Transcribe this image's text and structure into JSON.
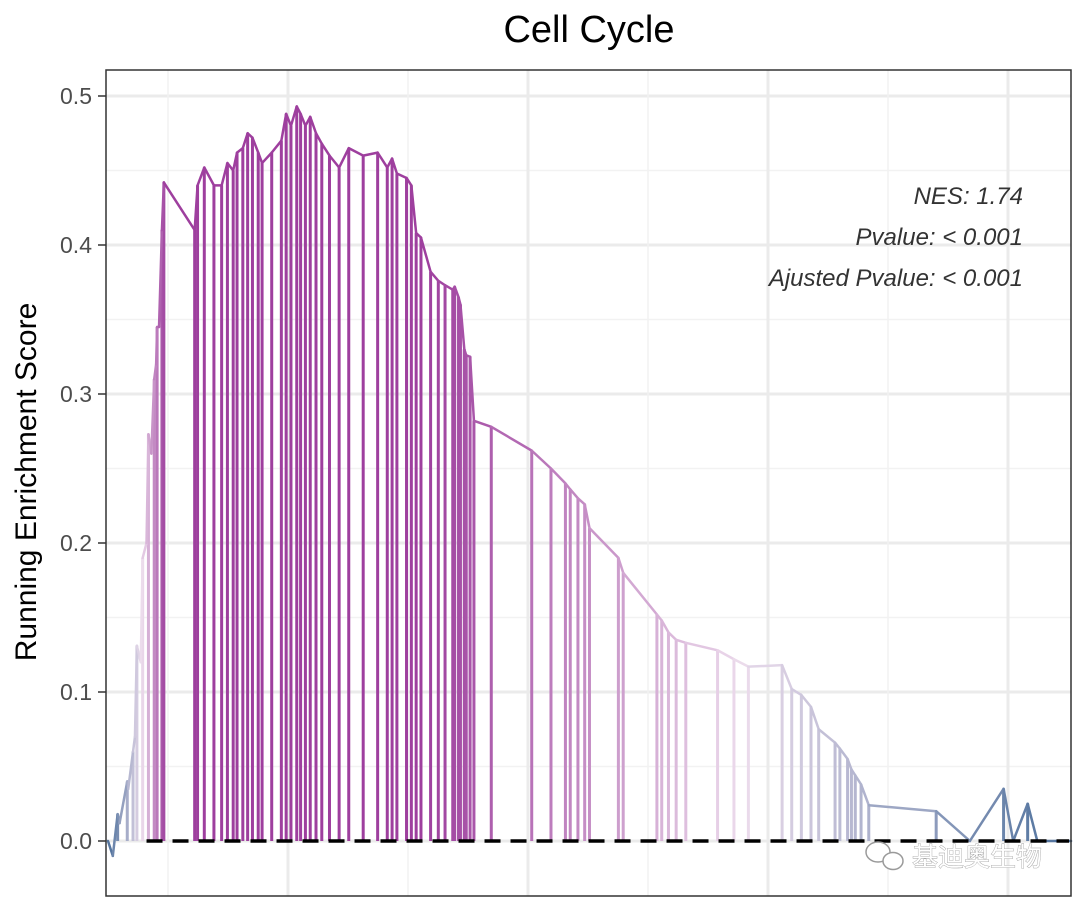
{
  "chart_data": {
    "type": "line",
    "title": "Cell Cycle",
    "ylabel": "Running Enrichment Score",
    "xlabel": "",
    "ylim": [
      -0.04,
      0.52
    ],
    "yticks": [
      0.0,
      0.1,
      0.2,
      0.3,
      0.4,
      0.5
    ],
    "ytick_labels": [
      "0.0",
      "0.1",
      "0.2",
      "0.3",
      "0.4",
      "0.5"
    ],
    "grid": true,
    "baseline": 0.0,
    "annotations": [
      "NES: 1.74",
      "Pvalue: < 0.001",
      "Ajusted Pvalue: < 0.001"
    ],
    "color_high": "#9e3f9e",
    "color_mid": "#ecdcec",
    "color_low": "#4a6e9a",
    "series": [
      {
        "x": [
          0,
          0.005,
          0.01,
          0.012,
          0.02,
          0.021,
          0.026,
          0.028,
          0.03,
          0.034,
          0.036,
          0.04,
          0.042,
          0.045,
          0.048,
          0.05,
          0.051,
          0.053,
          0.056,
          0.058,
          0.09,
          0.093,
          0.1,
          0.11,
          0.118,
          0.124,
          0.13,
          0.134,
          0.14,
          0.145,
          0.15,
          0.156,
          0.16,
          0.17,
          0.18,
          0.185,
          0.19,
          0.196,
          0.2,
          0.205,
          0.21,
          0.216,
          0.222,
          0.23,
          0.24,
          0.25,
          0.265,
          0.28,
          0.29,
          0.295,
          0.3,
          0.31,
          0.315,
          0.32,
          0.325,
          0.335,
          0.343,
          0.35,
          0.358,
          0.36,
          0.364,
          0.366,
          0.37,
          0.372,
          0.376,
          0.38,
          0.398,
          0.44,
          0.46,
          0.475,
          0.48,
          0.488,
          0.495,
          0.5,
          0.53,
          0.535,
          0.57,
          0.575,
          0.582,
          0.59,
          0.6,
          0.633,
          0.65,
          0.665,
          0.7,
          0.71,
          0.72,
          0.73,
          0.738,
          0.755,
          0.76,
          0.768,
          0.772,
          0.776,
          0.782,
          0.79,
          0.86,
          0.895,
          0.93,
          0.94,
          0.955,
          0.965,
          0.985,
          1.0
        ],
        "y": [
          0.0,
          -0.01,
          0.018,
          0.012,
          0.04,
          0.035,
          0.06,
          0.07,
          0.131,
          0.12,
          0.19,
          0.2,
          0.273,
          0.26,
          0.31,
          0.32,
          0.345,
          0.345,
          0.41,
          0.442,
          0.41,
          0.44,
          0.452,
          0.44,
          0.44,
          0.455,
          0.45,
          0.462,
          0.465,
          0.475,
          0.472,
          0.462,
          0.455,
          0.462,
          0.47,
          0.488,
          0.48,
          0.493,
          0.488,
          0.48,
          0.486,
          0.475,
          0.468,
          0.46,
          0.452,
          0.465,
          0.46,
          0.462,
          0.452,
          0.458,
          0.448,
          0.445,
          0.44,
          0.408,
          0.405,
          0.382,
          0.376,
          0.373,
          0.37,
          0.372,
          0.365,
          0.36,
          0.33,
          0.326,
          0.325,
          0.282,
          0.278,
          0.262,
          0.25,
          0.24,
          0.236,
          0.23,
          0.226,
          0.21,
          0.19,
          0.18,
          0.152,
          0.148,
          0.14,
          0.135,
          0.133,
          0.128,
          0.122,
          0.117,
          0.118,
          0.102,
          0.098,
          0.09,
          0.075,
          0.066,
          0.062,
          0.055,
          0.048,
          0.044,
          0.038,
          0.024,
          0.02,
          0.0,
          0.035,
          0.0,
          0.025,
          0.0,
          0.0,
          0.0
        ],
        "x_dense": [
          0,
          0.005,
          0.01,
          0.012,
          0.02,
          0.021,
          0.026,
          0.028,
          0.03,
          0.034,
          0.036,
          0.04,
          0.042,
          0.045,
          0.048,
          0.05,
          0.051,
          0.053,
          0.056,
          0.058,
          0.09,
          0.093,
          0.1,
          0.11,
          0.118,
          0.124,
          0.13,
          0.134,
          0.14,
          0.145,
          0.15,
          0.156,
          0.16,
          0.17,
          0.18,
          0.185,
          0.19,
          0.196,
          0.2,
          0.205,
          0.21,
          0.216,
          0.222,
          0.23,
          0.24,
          0.25,
          0.265,
          0.28,
          0.29,
          0.295,
          0.3,
          0.31,
          0.315,
          0.32,
          0.325,
          0.335,
          0.343,
          0.35,
          0.358,
          0.36,
          0.364,
          0.366,
          0.37,
          0.372,
          0.376,
          0.38,
          0.398,
          0.44,
          0.46,
          0.475,
          0.48,
          0.488,
          0.495,
          0.5,
          0.53,
          0.535,
          0.57,
          0.575,
          0.582,
          0.59,
          0.6,
          0.633,
          0.65,
          0.665,
          0.7,
          0.71,
          0.72,
          0.73,
          0.738,
          0.755,
          0.76,
          0.768,
          0.772,
          0.776,
          0.782,
          0.79,
          0.86,
          0.895,
          0.93,
          0.94,
          0.955,
          0.965,
          0.985,
          1.0
        ]
      }
    ],
    "hits": [
      0.01,
      0.02,
      0.026,
      0.03,
      0.036,
      0.042,
      0.048,
      0.051,
      0.056,
      0.058,
      0.09,
      0.093,
      0.1,
      0.11,
      0.118,
      0.124,
      0.13,
      0.134,
      0.14,
      0.145,
      0.15,
      0.156,
      0.16,
      0.17,
      0.18,
      0.185,
      0.19,
      0.196,
      0.2,
      0.205,
      0.21,
      0.216,
      0.222,
      0.23,
      0.24,
      0.25,
      0.265,
      0.28,
      0.29,
      0.295,
      0.3,
      0.31,
      0.315,
      0.32,
      0.325,
      0.335,
      0.343,
      0.35,
      0.358,
      0.36,
      0.364,
      0.366,
      0.37,
      0.372,
      0.376,
      0.38,
      0.398,
      0.44,
      0.46,
      0.475,
      0.48,
      0.488,
      0.495,
      0.5,
      0.53,
      0.535,
      0.57,
      0.575,
      0.582,
      0.59,
      0.6,
      0.633,
      0.65,
      0.665,
      0.7,
      0.71,
      0.72,
      0.73,
      0.738,
      0.755,
      0.76,
      0.768,
      0.772,
      0.776,
      0.782,
      0.79,
      0.86,
      0.895,
      0.93,
      0.94,
      0.955,
      0.985
    ]
  },
  "watermark": {
    "icon": "wechat-icon",
    "text": "基迪奥生物"
  }
}
